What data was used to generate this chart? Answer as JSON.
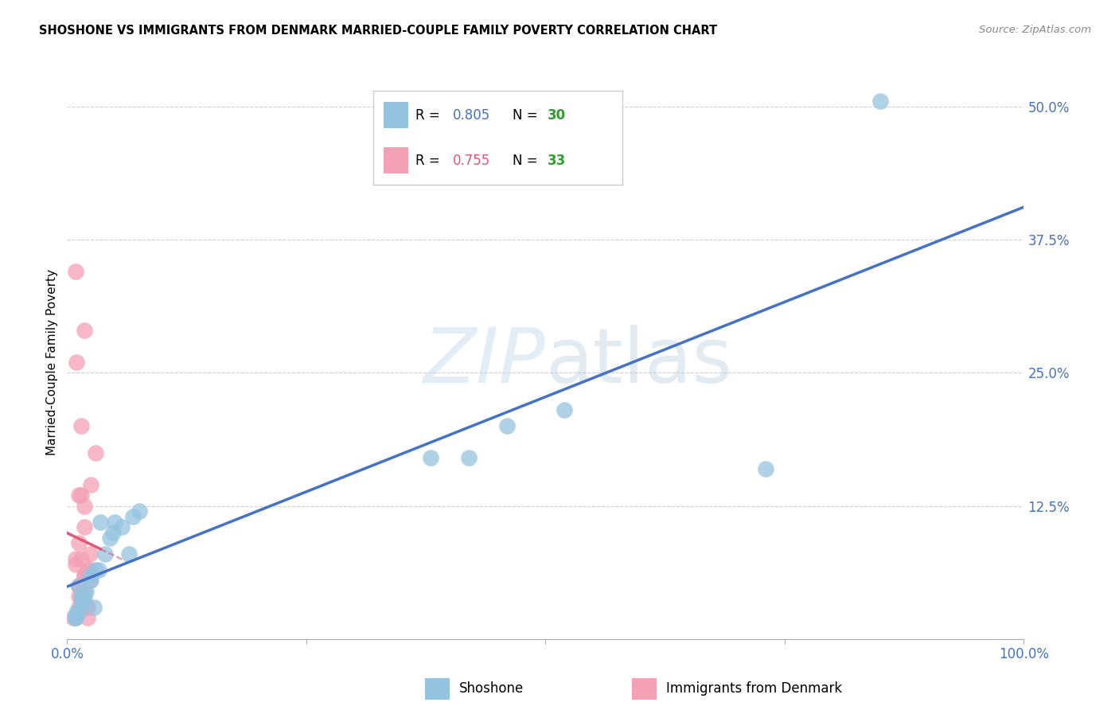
{
  "title": "SHOSHONE VS IMMIGRANTS FROM DENMARK MARRIED-COUPLE FAMILY POVERTY CORRELATION CHART",
  "source": "Source: ZipAtlas.com",
  "ylabel": "Married-Couple Family Poverty",
  "xlim": [
    0,
    100
  ],
  "ylim": [
    0,
    52
  ],
  "shoshone_color": "#94c4e0",
  "denmark_color": "#f4a0b5",
  "shoshone_line_color": "#4472c4",
  "denmark_line_color": "#e05878",
  "shoshone_R": "0.805",
  "shoshone_N": "30",
  "denmark_R": "0.755",
  "denmark_N": "33",
  "watermark_zip": "ZIP",
  "watermark_atlas": "atlas",
  "shoshone_x": [
    1.5,
    3.5,
    5.0,
    6.5,
    1.0,
    2.5,
    4.5,
    1.2,
    1.8,
    3.0,
    0.8,
    2.0,
    2.8,
    4.0,
    1.5,
    4.8,
    0.9,
    1.2,
    7.5,
    3.3,
    1.8,
    2.5,
    5.7,
    6.9,
    38,
    42,
    46,
    52,
    73,
    85
  ],
  "shoshone_y": [
    4.0,
    11.0,
    11.0,
    8.0,
    2.5,
    6.0,
    9.5,
    5.0,
    3.5,
    6.5,
    2.0,
    4.5,
    3.0,
    8.0,
    3.5,
    10.0,
    2.0,
    2.5,
    12.0,
    6.5,
    4.0,
    5.5,
    10.5,
    11.5,
    17.0,
    17.0,
    20.0,
    21.5,
    16.0,
    50.5
  ],
  "denmark_x": [
    1.5,
    1.0,
    1.8,
    1.2,
    2.5,
    0.6,
    2.1,
    1.5,
    1.2,
    1.8,
    0.9,
    1.5,
    2.4,
    1.2,
    1.8,
    0.9,
    2.1,
    1.5,
    1.2,
    1.8,
    2.4,
    0.9,
    1.5,
    2.1,
    1.2,
    1.8,
    2.4,
    1.5,
    0.9,
    3.0,
    1.8,
    1.2,
    2.1
  ],
  "denmark_y": [
    13.5,
    26.0,
    29.0,
    13.5,
    14.5,
    2.0,
    3.0,
    4.0,
    5.0,
    6.0,
    7.0,
    7.5,
    8.0,
    9.0,
    10.5,
    2.0,
    3.0,
    4.0,
    5.0,
    6.0,
    6.5,
    7.5,
    3.0,
    2.0,
    4.0,
    4.5,
    5.5,
    20.0,
    34.5,
    17.5,
    12.5,
    3.0,
    6.5
  ],
  "grid_color": "#cccccc",
  "tick_color": "#4472c4",
  "N_color": "#2ca02c"
}
